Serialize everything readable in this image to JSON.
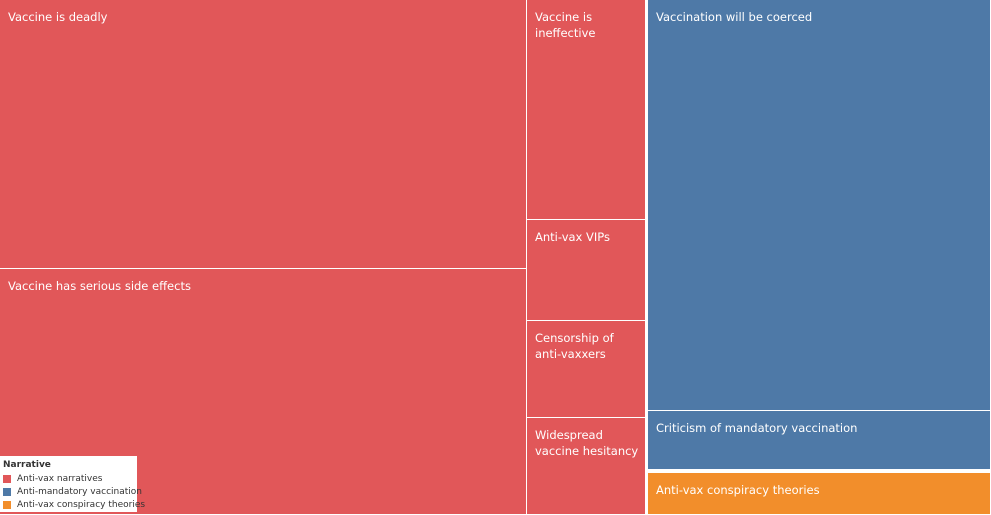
{
  "chart_data": {
    "type": "treemap",
    "title": "",
    "groups": [
      {
        "name": "Anti-vax narratives",
        "color": "#e15759",
        "items": [
          {
            "label": "Vaccine is deadly",
            "value": 27.1
          },
          {
            "label": "Vaccine has serious side effects",
            "value": 24.8
          },
          {
            "label": "Vaccine is ineffective",
            "value": 5.0
          },
          {
            "label": "Anti-vax VIPs",
            "value": 2.3
          },
          {
            "label": "Censorship of anti-vaxxers",
            "value": 2.2
          },
          {
            "label": "Widespread vaccine hesitancy",
            "value": 2.2
          }
        ]
      },
      {
        "name": "Anti-mandatory vaccination",
        "color": "#4e79a7",
        "items": [
          {
            "label": "Vaccination will be coerced",
            "value": 27.2
          },
          {
            "label": "Criticism of mandatory vaccination",
            "value": 3.9
          }
        ]
      },
      {
        "name": "Anti-vax conspiracy theories",
        "color": "#f28e2b",
        "items": [
          {
            "label": "Anti-vax conspiracy theories",
            "value": 2.8
          }
        ]
      }
    ]
  },
  "legend": {
    "title": "Narrative",
    "items": [
      {
        "label": "Anti-vax narratives",
        "color": "#e15759"
      },
      {
        "label": "Anti-mandatory vaccination",
        "color": "#4e79a7"
      },
      {
        "label": "Anti-vax conspiracy theories",
        "color": "#f28e2b"
      }
    ]
  }
}
